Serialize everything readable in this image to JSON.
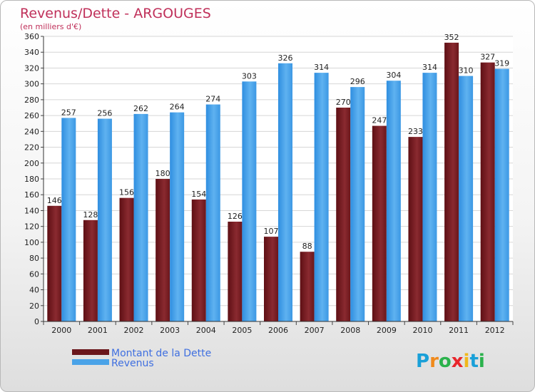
{
  "chart_data": {
    "type": "bar",
    "title": "Revenus/Dette - ARGOUGES",
    "subtitle": "(en milliers d'€)",
    "categories": [
      "2000",
      "2001",
      "2002",
      "2003",
      "2004",
      "2005",
      "2006",
      "2007",
      "2008",
      "2009",
      "2010",
      "2011",
      "2012"
    ],
    "series": [
      {
        "name": "Montant de la Dette",
        "color": "#7a1e24",
        "values": [
          146,
          128,
          156,
          180,
          154,
          126,
          107,
          88,
          270,
          247,
          233,
          352,
          327
        ]
      },
      {
        "name": "Revenus",
        "color": "#4aa3e8",
        "values": [
          257,
          256,
          262,
          264,
          274,
          303,
          326,
          314,
          296,
          304,
          314,
          310,
          319
        ]
      }
    ],
    "ylim": [
      0,
      360
    ],
    "ytick_step": 20,
    "grid": true,
    "legend_position": "bottom-left"
  },
  "logo": {
    "text": "Proxiti"
  }
}
